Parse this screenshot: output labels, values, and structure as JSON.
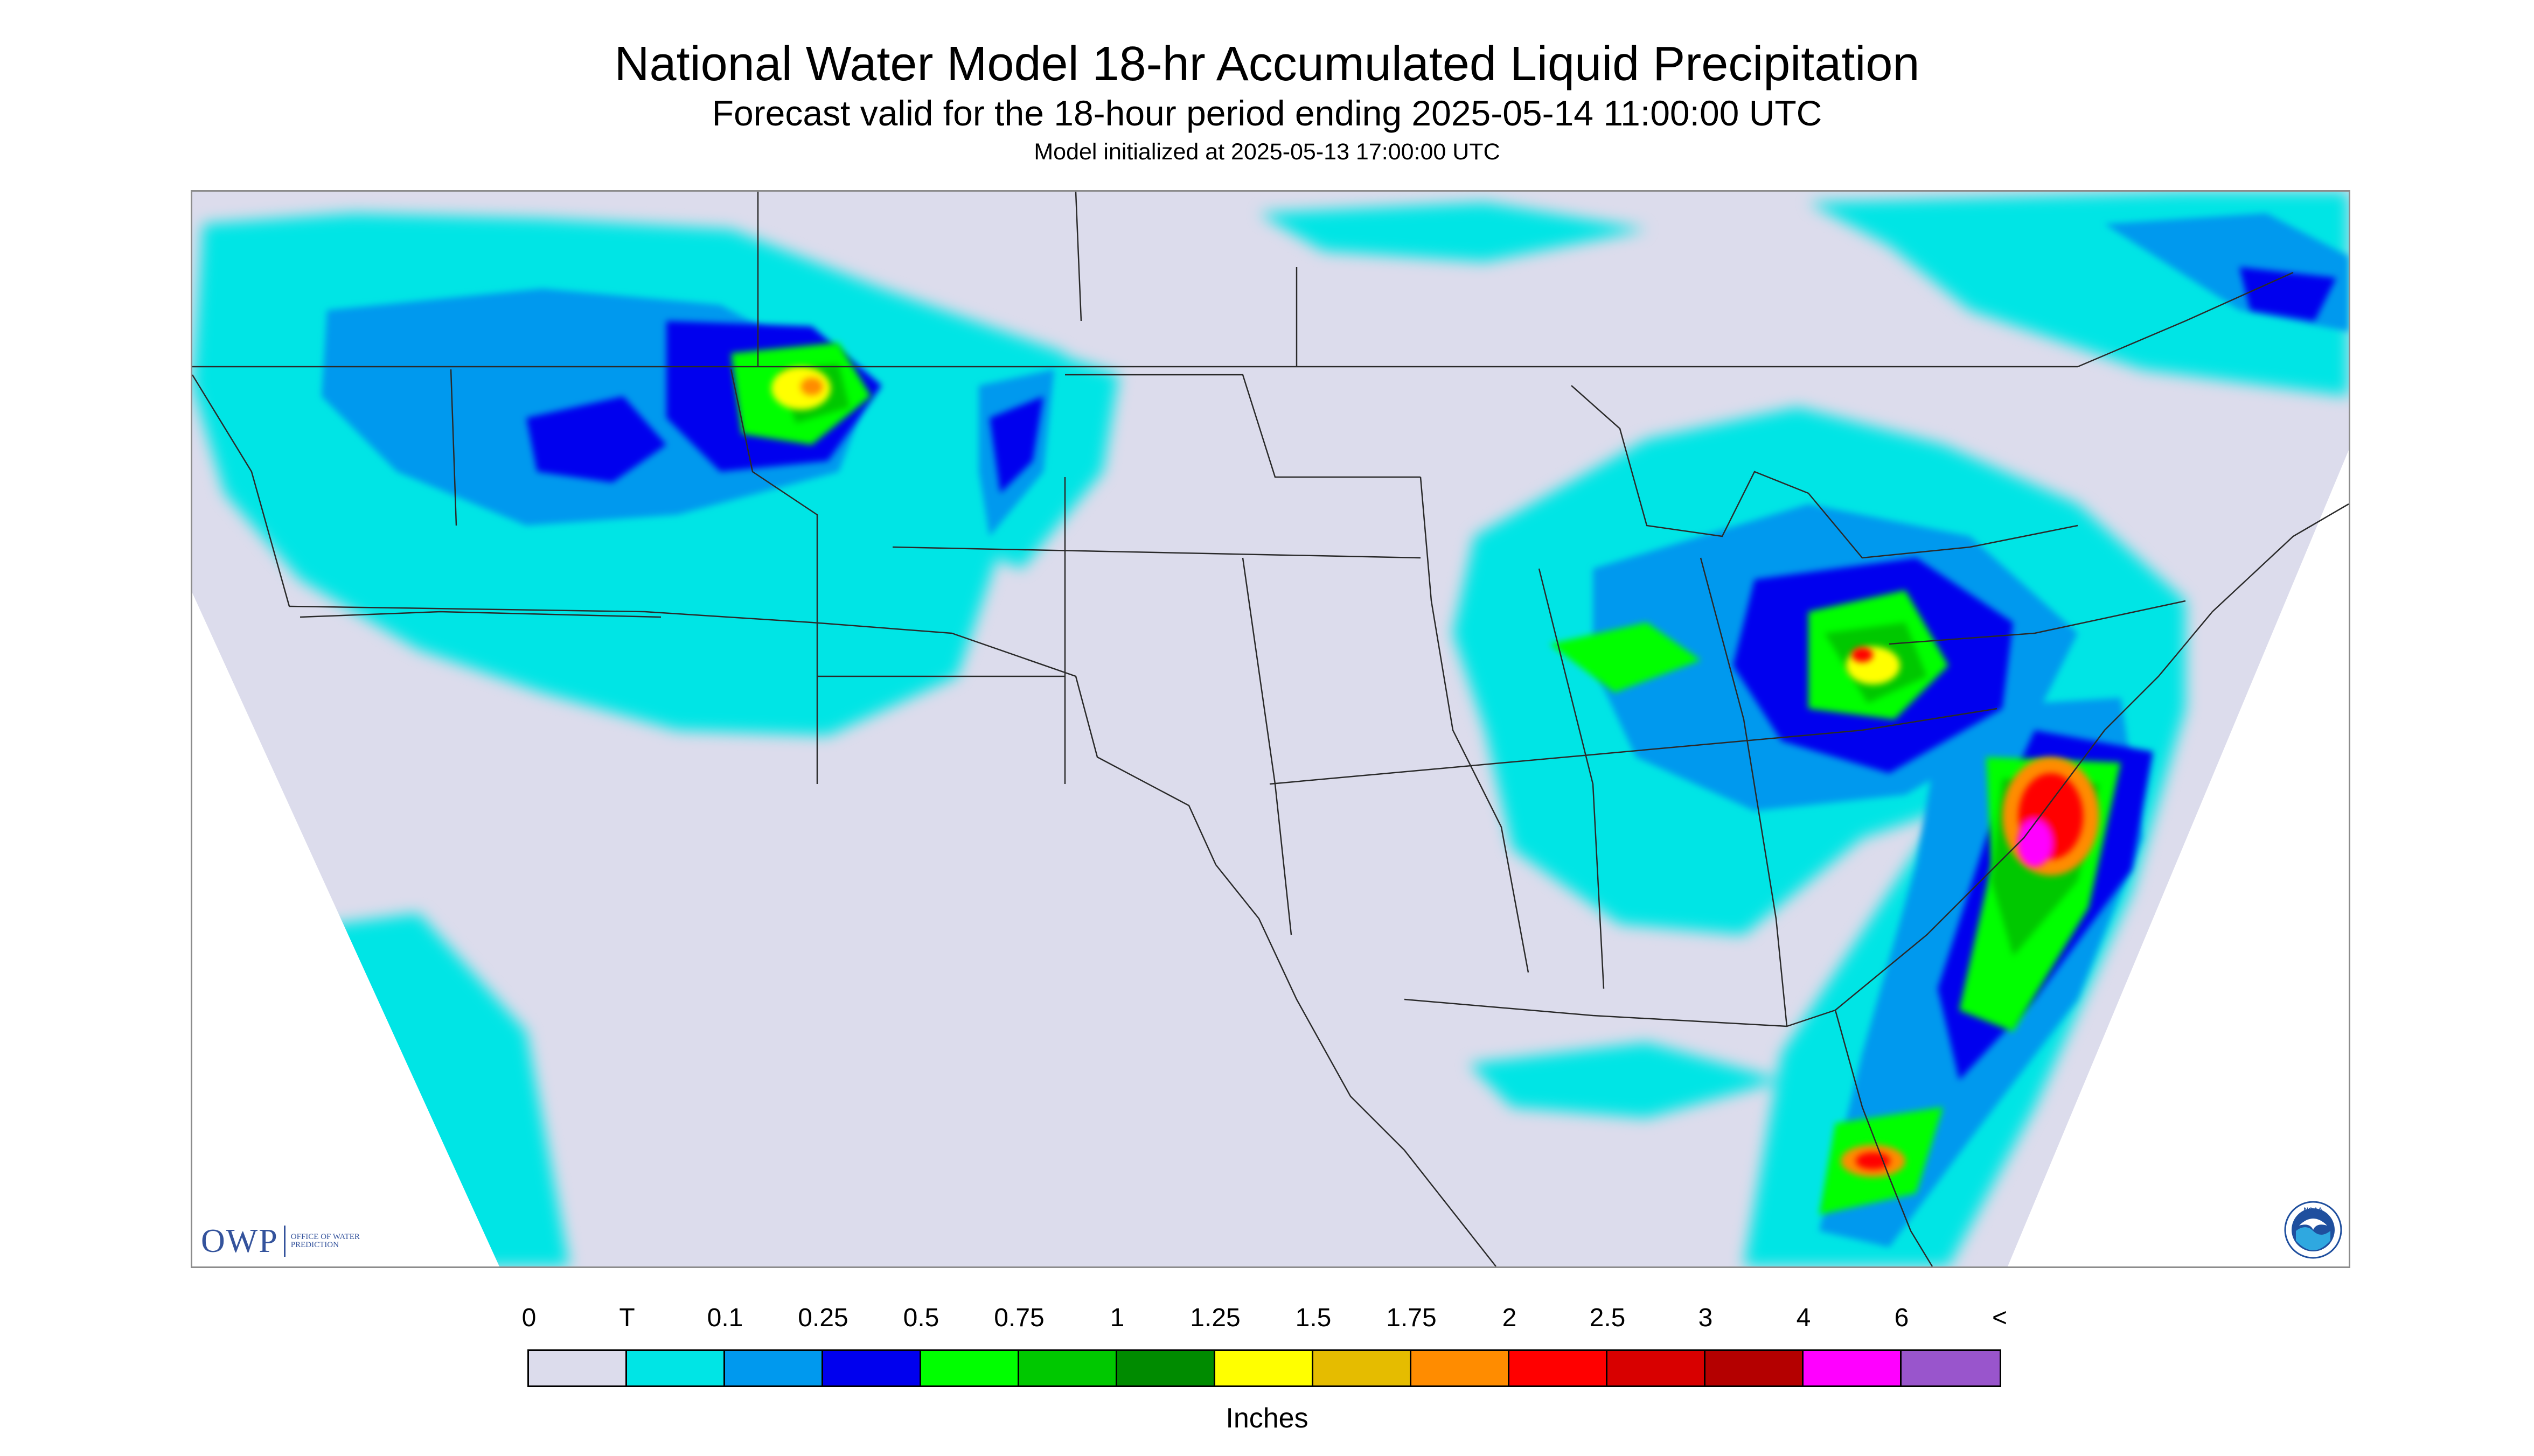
{
  "title": "National Water Model 18-hr Accumulated Liquid Precipitation",
  "subtitle": "Forecast valid for the 18-hour period ending 2025-05-14 11:00:00 UTC",
  "init_line": "Model initialized at 2025-05-13 17:00:00 UTC",
  "map": {
    "domain_fill": "#dcdcec",
    "outside_fill": "#ffffff",
    "border_color": "#2a2a2a"
  },
  "logos": {
    "owp": {
      "letters": "OWP",
      "subtext": "OFFICE OF WATER PREDICTION"
    },
    "noaa": {
      "letters": "NOAA",
      "icon": "noaa-seal-icon"
    }
  },
  "legend": {
    "tick_labels": [
      "0",
      "T",
      "0.1",
      "0.25",
      "0.5",
      "0.75",
      "1",
      "1.25",
      "1.5",
      "1.75",
      "2",
      "2.5",
      "3",
      "4",
      "6",
      "<"
    ],
    "colors": [
      "#dcdcec",
      "#00e5e5",
      "#0099ee",
      "#0000ee",
      "#00ff00",
      "#00c800",
      "#008b00",
      "#ffff00",
      "#e5bc00",
      "#ff8c00",
      "#ff0000",
      "#d80000",
      "#b40000",
      "#ff00ff",
      "#9955cc"
    ],
    "units": "Inches"
  }
}
